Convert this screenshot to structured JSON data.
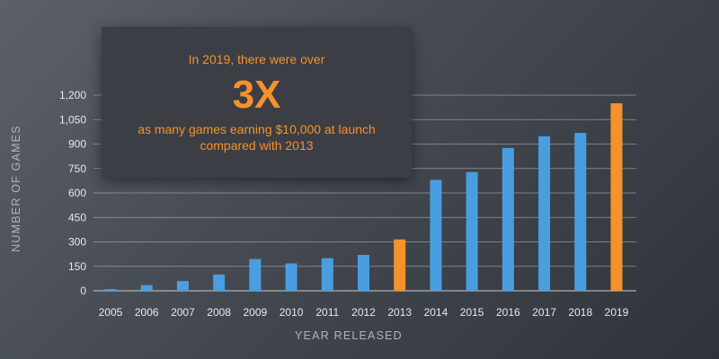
{
  "callout": {
    "lead": "In 2019, there were over",
    "headline": "3X",
    "body": "as many games earning $10,000 at launch compared with 2013"
  },
  "chart_data": {
    "type": "bar",
    "xlabel": "YEAR RELEASED",
    "ylabel": "NUMBER OF GAMES",
    "ylim": [
      0,
      1200
    ],
    "yticks": [
      0,
      150,
      300,
      450,
      600,
      750,
      900,
      1050,
      1200
    ],
    "ytick_labels": [
      "0",
      "150",
      "300",
      "450",
      "600",
      "750",
      "900",
      "1,050",
      "1,200"
    ],
    "grid": true,
    "categories": [
      "2005",
      "2006",
      "2007",
      "2008",
      "2009",
      "2010",
      "2011",
      "2012",
      "2013",
      "2014",
      "2015",
      "2016",
      "2017",
      "2018",
      "2019"
    ],
    "values": [
      10,
      35,
      60,
      100,
      195,
      168,
      200,
      220,
      315,
      680,
      728,
      876,
      948,
      968,
      1150
    ],
    "highlight": [
      "2013",
      "2019"
    ],
    "colors": {
      "bar": "#4a9ee0",
      "highlight": "#f5922b",
      "grid": "#b8bcc2",
      "text": "#e6e8eb",
      "axis_title": "#aeb3ba"
    }
  }
}
